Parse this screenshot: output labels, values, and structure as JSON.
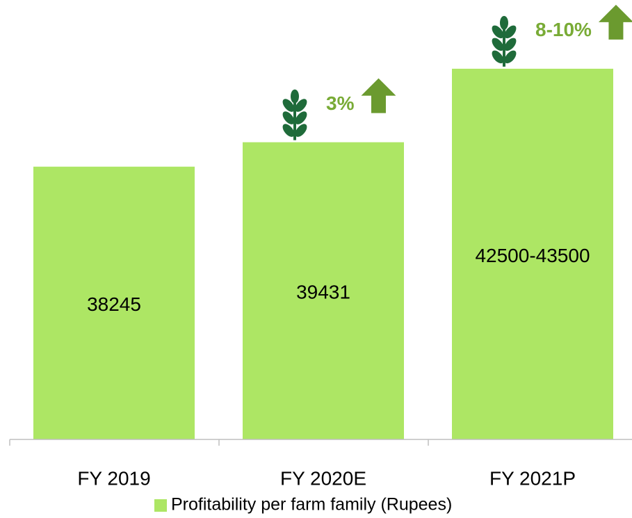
{
  "chart_data": {
    "type": "bar",
    "categories": [
      "FY 2019",
      "FY 2020E",
      "FY 2021P"
    ],
    "series": [
      {
        "name": "Profitability per farm family (Rupees)",
        "color": "#ade664",
        "values": [
          38245,
          39431,
          43000
        ],
        "value_labels": [
          "38245",
          "39431",
          "42500-43500"
        ]
      }
    ],
    "ylim": [
      25000,
      46000
    ],
    "annotations": [
      "3%",
      "8-10%"
    ],
    "annotation_color": "#79ab36",
    "legend": "bottom"
  }
}
